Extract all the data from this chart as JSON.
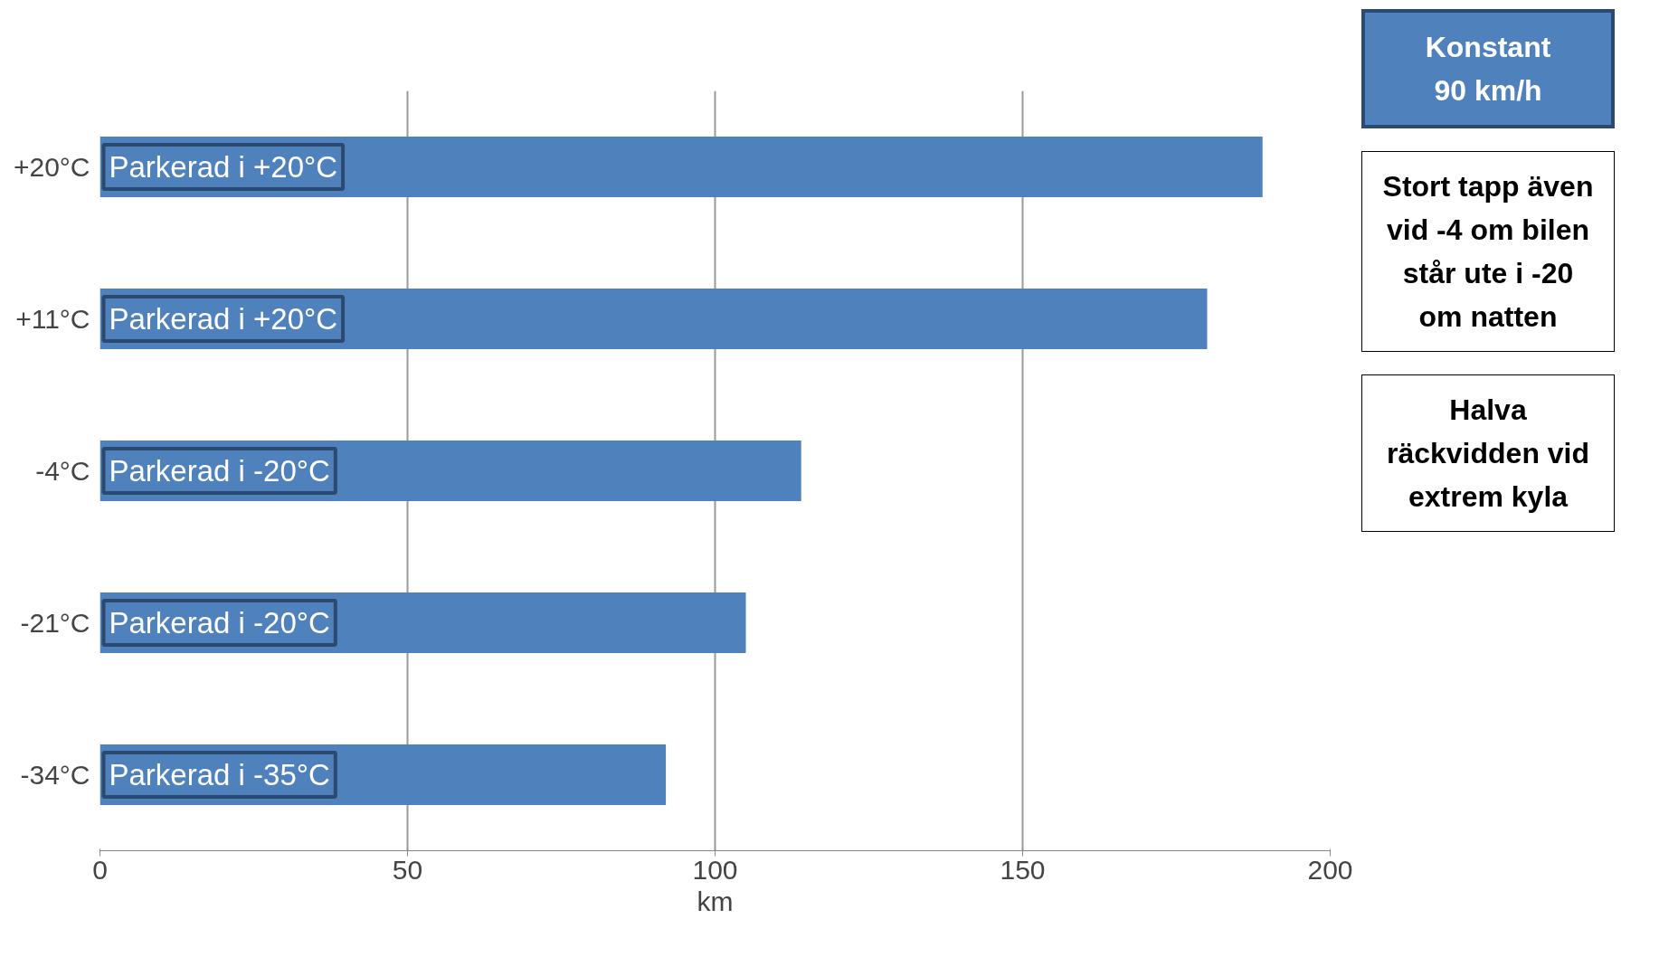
{
  "chart_data": {
    "type": "bar",
    "orientation": "horizontal",
    "categories": [
      "+20°C",
      "+11°C",
      "-4°C",
      "-21°C",
      "-34°C"
    ],
    "values": [
      189,
      180,
      114,
      105,
      92
    ],
    "color": "#4f81bd",
    "xlabel": "km",
    "xlim": [
      0,
      200
    ],
    "xticks": [
      0,
      50,
      100,
      150,
      200
    ],
    "grid": "x",
    "annotations": [
      "Parkerad i +20°C",
      "Parkerad i +20°C",
      "Parkerad i -20°C",
      "Parkerad i -20°C",
      "Parkerad i -35°C",
      "Stort tapp även\nvid -4 om bilen\nstår ute i -20\nom natten",
      "Halva\nräckvidden vid\nextrem kyla",
      "Konstant\n90 km/h"
    ]
  }
}
